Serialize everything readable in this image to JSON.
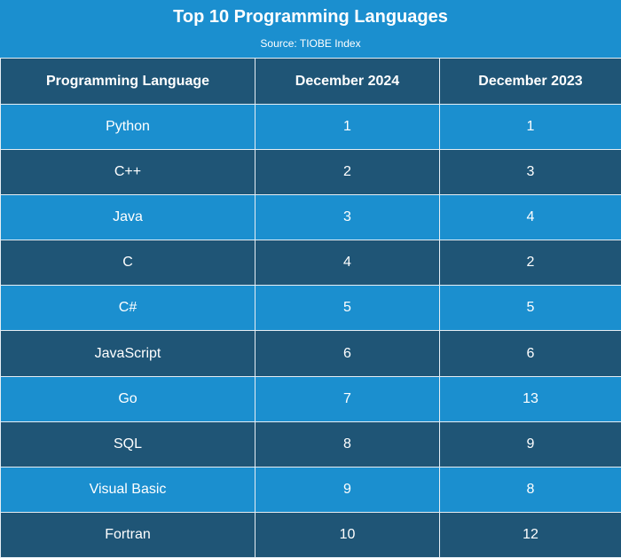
{
  "colors": {
    "header_bg": "#1b8fcf",
    "row_light": "#1b8fcf",
    "row_dark": "#1f5576",
    "text": "#ffffff"
  },
  "chart_data": {
    "type": "table",
    "title": "Top 10 Programming Languages",
    "subtitle": "Source: TIOBE Index",
    "columns": [
      "Programming Language",
      "December 2024",
      "December 2023"
    ],
    "rows": [
      [
        "Python",
        "1",
        "1"
      ],
      [
        "C++",
        "2",
        "3"
      ],
      [
        "Java",
        "3",
        "4"
      ],
      [
        "C",
        "4",
        "2"
      ],
      [
        "C#",
        "5",
        "5"
      ],
      [
        "JavaScript",
        "6",
        "6"
      ],
      [
        "Go",
        "7",
        "13"
      ],
      [
        "SQL",
        "8",
        "9"
      ],
      [
        "Visual Basic",
        "9",
        "8"
      ],
      [
        "Fortran",
        "10",
        "12"
      ]
    ]
  }
}
